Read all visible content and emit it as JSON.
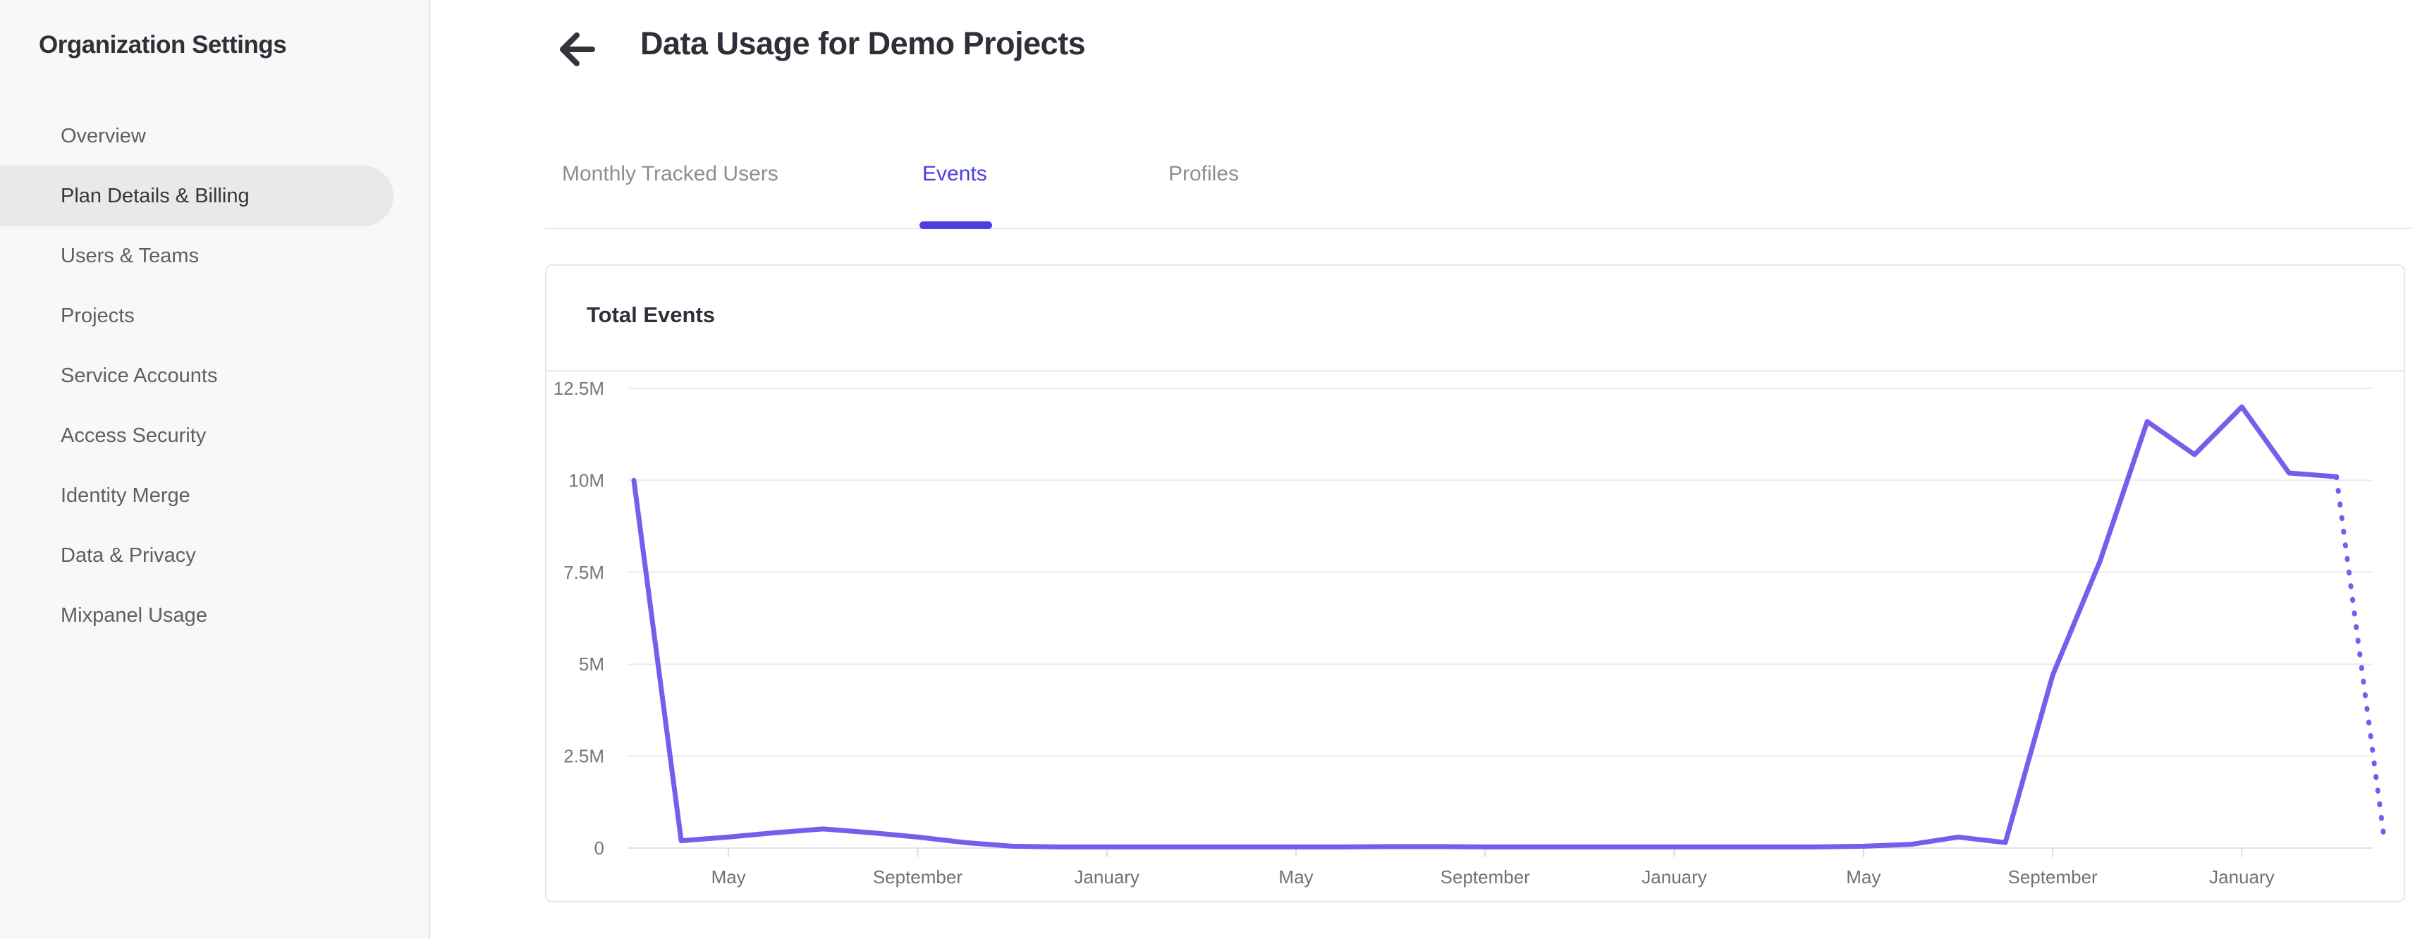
{
  "sidebar": {
    "title": "Organization Settings",
    "items": [
      {
        "label": "Overview",
        "active": false
      },
      {
        "label": "Plan Details & Billing",
        "active": true
      },
      {
        "label": "Users & Teams",
        "active": false
      },
      {
        "label": "Projects",
        "active": false
      },
      {
        "label": "Service Accounts",
        "active": false
      },
      {
        "label": "Access Security",
        "active": false
      },
      {
        "label": "Identity Merge",
        "active": false
      },
      {
        "label": "Data & Privacy",
        "active": false
      },
      {
        "label": "Mixpanel Usage",
        "active": false
      }
    ]
  },
  "header": {
    "title": "Data Usage for Demo Projects",
    "back_icon": "left-arrow-icon"
  },
  "tabs": {
    "items": [
      {
        "label": "Monthly Tracked Users",
        "active": false
      },
      {
        "label": "Events",
        "active": true
      },
      {
        "label": "Profiles",
        "active": false
      }
    ]
  },
  "colors": {
    "accent": "#4C40E0",
    "line": "#7A5CEC",
    "sidebar_active_bg": "#E9E9EA",
    "gridline": "#ECECEE",
    "axis_line": "#E2E2E4",
    "axis_label": "#6F7176"
  },
  "chart_data": {
    "type": "line",
    "title": "Total Events",
    "xlabel": "",
    "ylabel": "",
    "grid": "horizontal",
    "legend": "none",
    "ylim_millions": [
      0,
      12.5
    ],
    "y_tick_labels": [
      "0",
      "2.5M",
      "5M",
      "7.5M",
      "10M",
      "12.5M"
    ],
    "y_tick_values_millions": [
      0,
      2.5,
      5,
      7.5,
      10,
      12.5
    ],
    "x_tick_labels": [
      "May",
      "September",
      "January",
      "May",
      "September",
      "January",
      "May",
      "September",
      "January"
    ],
    "x_tick_month_index": [
      2,
      6,
      10,
      14,
      18,
      22,
      26,
      30,
      34
    ],
    "series": [
      {
        "name": "Total Events",
        "unit": "millions",
        "start_month_index": 0,
        "values_millions": [
          10,
          0.2,
          0.3,
          0.42,
          0.52,
          0.42,
          0.3,
          0.15,
          0.05,
          0.03,
          0.03,
          0.03,
          0.03,
          0.03,
          0.03,
          0.03,
          0.04,
          0.04,
          0.03,
          0.03,
          0.03,
          0.03,
          0.03,
          0.03,
          0.03,
          0.03,
          0.05,
          0.1,
          0.3,
          0.15,
          4.7,
          7.8,
          11.6,
          10.7,
          12.0,
          10.2,
          10.1
        ],
        "projected_values_millions": [
          10.1,
          0.35
        ],
        "projected_style": "dotted",
        "color": "#7A5CEC"
      }
    ]
  }
}
